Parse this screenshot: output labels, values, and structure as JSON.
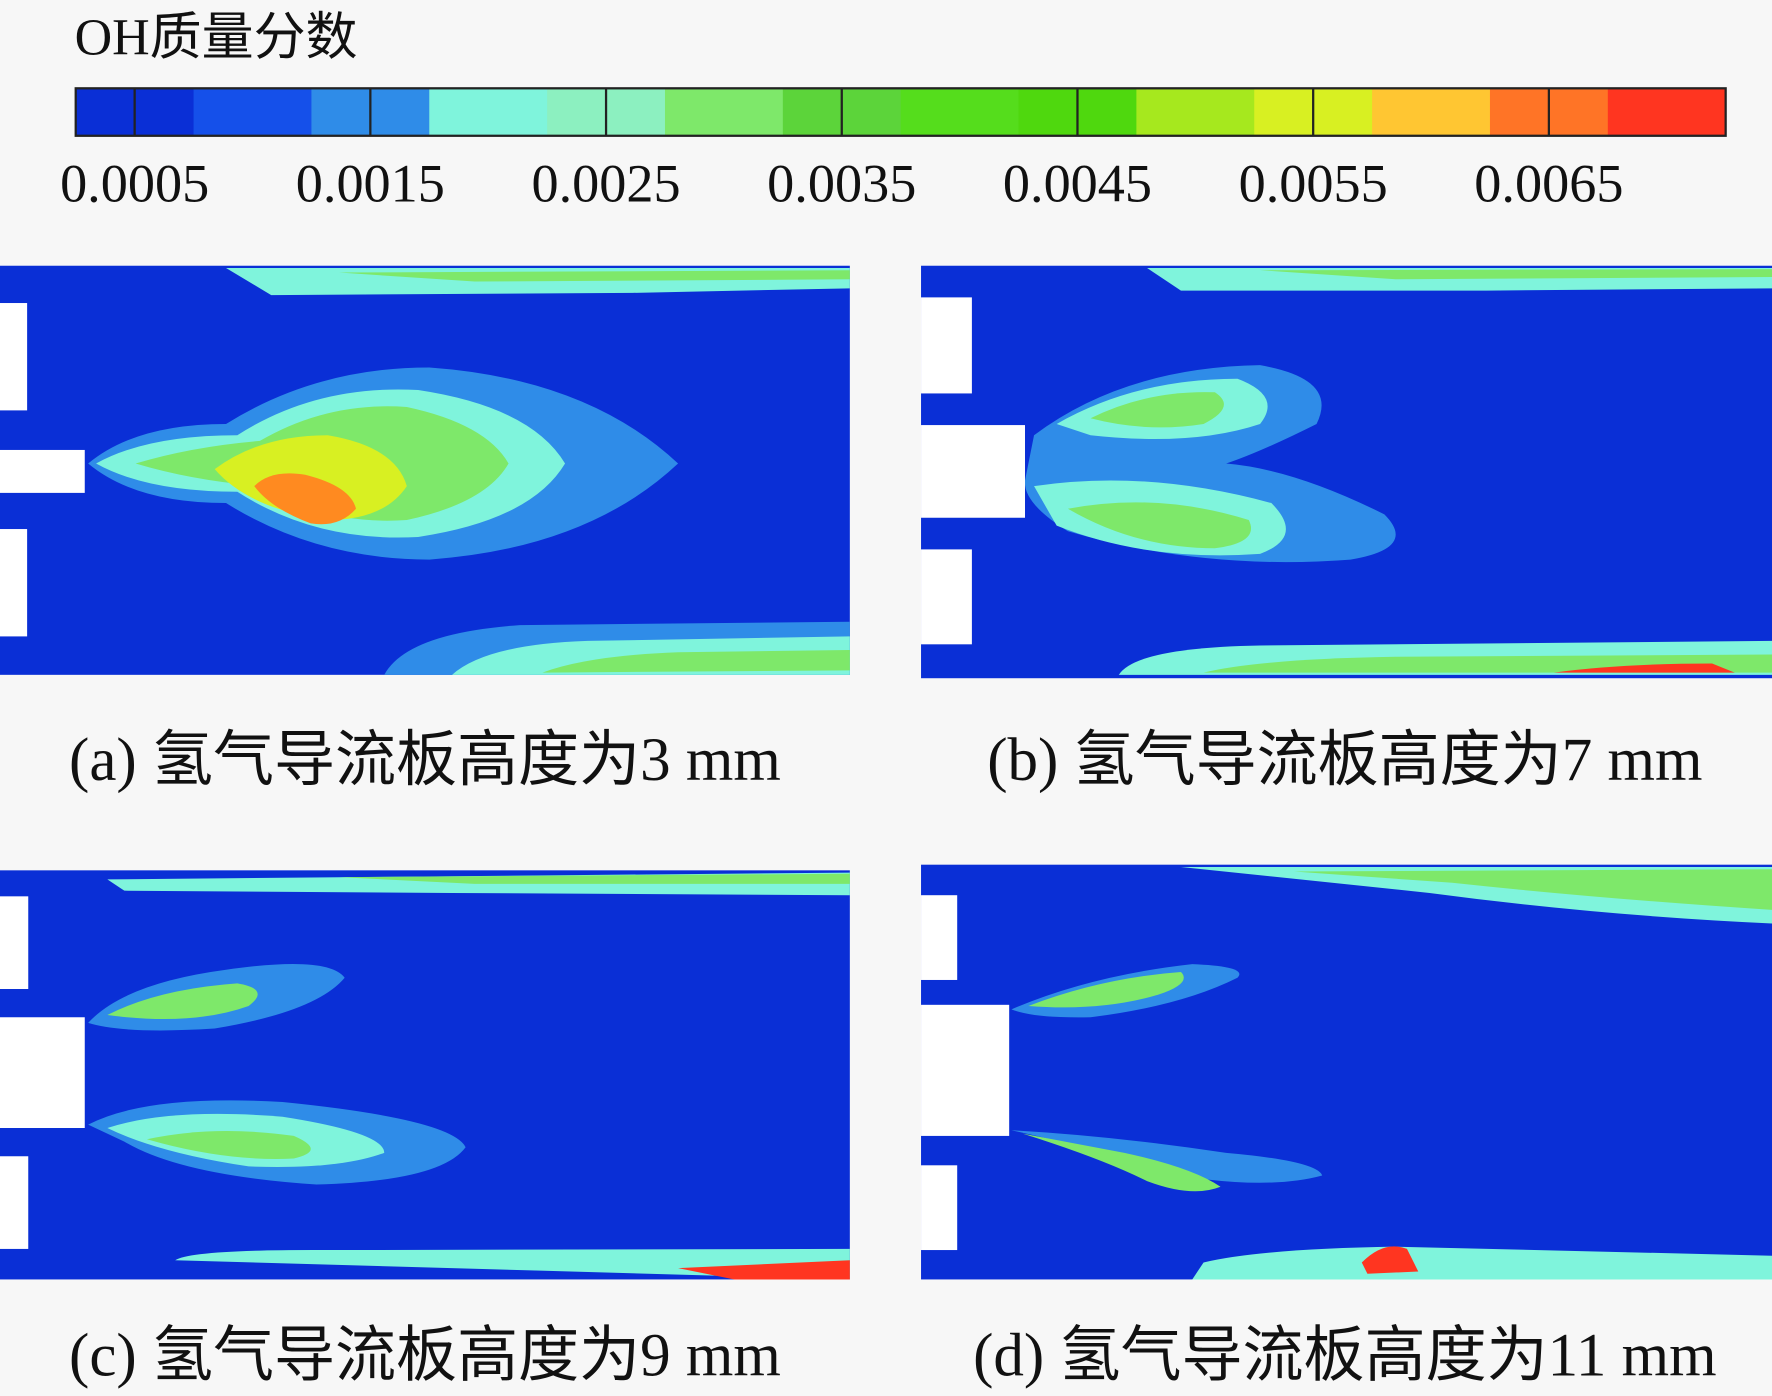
{
  "colorbar": {
    "title": "OH质量分数",
    "lim": [
      0.00025,
      0.00725
    ],
    "ticks": [
      0.0005,
      0.0015,
      0.0025,
      0.0035,
      0.0045,
      0.0055,
      0.0065
    ],
    "colors": [
      "#0a2fd6",
      "#1550ea",
      "#2f8ce8",
      "#7ff4dc",
      "#8cf0c0",
      "#7ee86a",
      "#5cd43a",
      "#55dd1c",
      "#4fd80e",
      "#a6e81e",
      "#d8f022",
      "#ffc632",
      "#ff7426",
      "#ff3520"
    ]
  },
  "panels": [
    {
      "caption": "(a) 氢气导流板高度为3 mm"
    },
    {
      "caption": "(b) 氢气导流板高度为7 mm"
    },
    {
      "caption": "(c) 氢气导流板高度为9 mm"
    },
    {
      "caption": "(d) 氢气导流板高度为11 mm"
    }
  ]
}
